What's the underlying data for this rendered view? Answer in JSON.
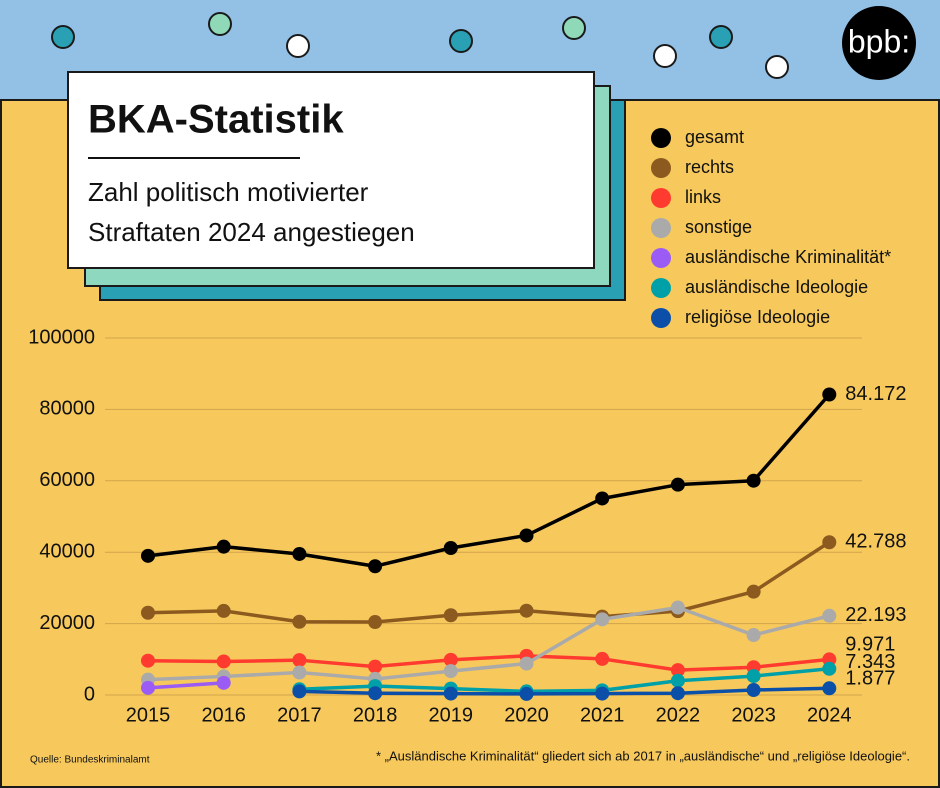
{
  "logo": "bpb:",
  "chart_data": {
    "type": "line",
    "title": "BKA-Statistik",
    "subtitle": [
      "Zahl politisch motivierter",
      "Straftaten 2024 angestiegen"
    ],
    "source": "Quelle: Bundeskriminalamt",
    "footnote": "* „Ausländische Kriminalität“ gliedert sich ab 2017 in „ausländische“ und „religiöse Ideologie“.",
    "categories": [
      "2015",
      "2016",
      "2017",
      "2018",
      "2019",
      "2020",
      "2021",
      "2022",
      "2023",
      "2024"
    ],
    "ylim": [
      0,
      100000
    ],
    "yticks": [
      0,
      20000,
      40000,
      60000,
      80000,
      100000
    ],
    "grid": true,
    "legend": "top-right",
    "series": [
      {
        "name": "gesamt",
        "color": "#000000",
        "values": [
          38981,
          41549,
          39505,
          36062,
          41177,
          44692,
          55048,
          58916,
          60028,
          84172
        ],
        "value_labels": [
          null,
          null,
          null,
          null,
          null,
          null,
          null,
          null,
          null,
          "84.172"
        ]
      },
      {
        "name": "rechts",
        "color": "#8c5a1f",
        "values": [
          23042,
          23555,
          20520,
          20431,
          22342,
          23604,
          21964,
          23493,
          28945,
          42788
        ],
        "value_labels": [
          null,
          null,
          null,
          null,
          null,
          null,
          null,
          null,
          null,
          "42.788"
        ]
      },
      {
        "name": "links",
        "color": "#ff3b30",
        "values": [
          9605,
          9389,
          9752,
          7961,
          9849,
          10971,
          10113,
          6976,
          7777,
          9971
        ],
        "value_labels": [
          null,
          null,
          null,
          null,
          null,
          null,
          null,
          null,
          null,
          "9.971"
        ]
      },
      {
        "name": "sonstige",
        "color": "#aaaaaa",
        "values": [
          4300,
          5200,
          6300,
          4500,
          6700,
          8800,
          21200,
          24500,
          16800,
          22193
        ],
        "value_labels": [
          null,
          null,
          null,
          null,
          null,
          null,
          null,
          null,
          null,
          "22.193"
        ]
      },
      {
        "name": "ausländische Kriminalität*",
        "color": "#9b5cf6",
        "values": [
          2000,
          3400,
          null,
          null,
          null,
          null,
          null,
          null,
          null,
          null
        ]
      },
      {
        "name": "ausländische Ideologie",
        "color": "#00a0a8",
        "values": [
          null,
          null,
          1600,
          2500,
          1800,
          1000,
          1300,
          4000,
          5300,
          7343
        ],
        "value_labels": [
          null,
          null,
          null,
          null,
          null,
          null,
          null,
          null,
          null,
          "7.343"
        ]
      },
      {
        "name": "religiöse Ideologie",
        "color": "#0b4fa8",
        "values": [
          null,
          null,
          1000,
          500,
          400,
          300,
          400,
          500,
          1400,
          1877
        ],
        "value_labels": [
          null,
          null,
          null,
          null,
          null,
          null,
          null,
          null,
          null,
          "1.877"
        ]
      }
    ]
  }
}
